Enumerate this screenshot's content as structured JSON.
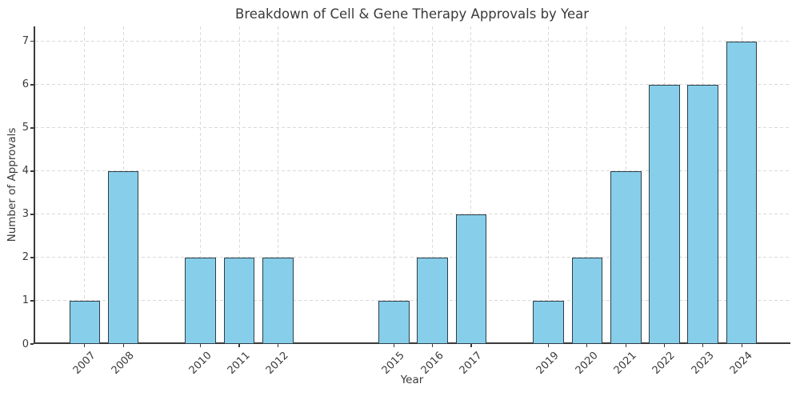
{
  "chart_data": {
    "type": "bar",
    "title": "Breakdown of Cell & Gene Therapy Approvals by Year",
    "xlabel": "Year",
    "ylabel": "Number of Approvals",
    "categories": [
      "2007",
      "2008",
      "2010",
      "2011",
      "2012",
      "2015",
      "2016",
      "2017",
      "2019",
      "2020",
      "2021",
      "2022",
      "2023",
      "2024"
    ],
    "x_years": [
      2007,
      2008,
      2010,
      2011,
      2012,
      2015,
      2016,
      2017,
      2019,
      2020,
      2021,
      2022,
      2023,
      2024
    ],
    "values": [
      1,
      4,
      2,
      2,
      2,
      1,
      2,
      3,
      1,
      2,
      4,
      6,
      6,
      7
    ],
    "yticks": [
      0,
      1,
      2,
      3,
      4,
      5,
      6,
      7
    ],
    "xlim": [
      2005.72,
      2025.26
    ],
    "ylim": [
      0,
      7.35
    ],
    "bar_width_years": 0.8,
    "grid": {
      "style": "dashed",
      "axes": "both"
    },
    "legend": "none",
    "colors": {
      "bar_fill": "#87ceeb",
      "bar_edge": "#2f3e46",
      "grid": "#d9d9d9",
      "spine": "#3a3a3a",
      "text": "#3a3a3a",
      "background": "#ffffff"
    }
  }
}
